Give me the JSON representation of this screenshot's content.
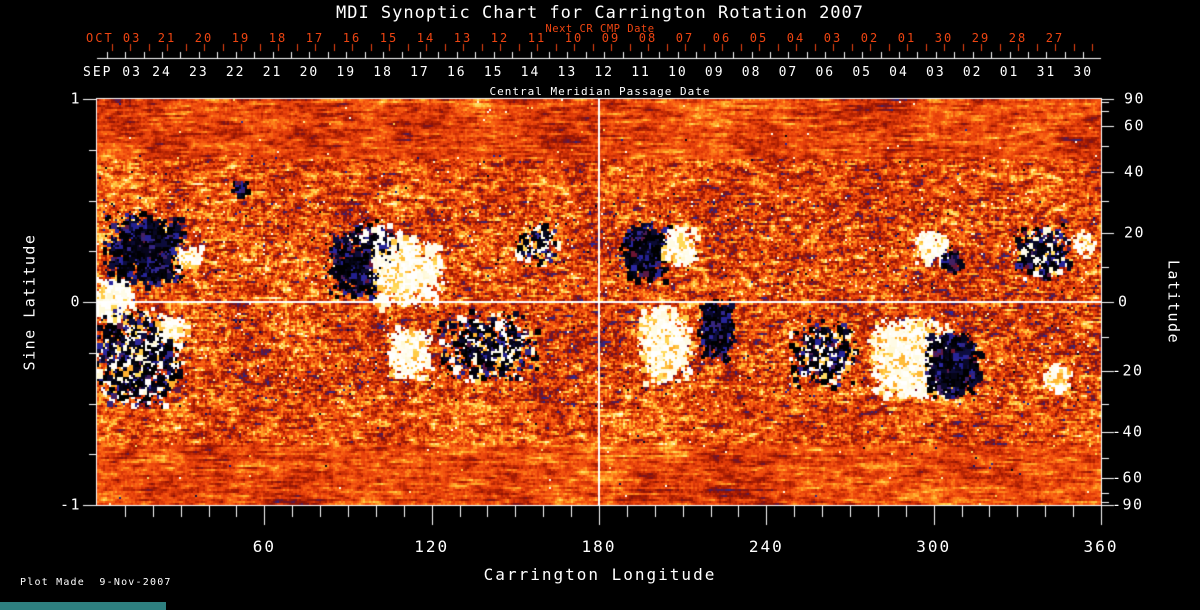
{
  "title": "MDI Synoptic Chart for Carrington Rotation 2007",
  "top_axis": {
    "red": {
      "axis_label": "Next CR CMP Date",
      "month_label": "OCT 03",
      "days": [
        "21",
        "20",
        "19",
        "18",
        "17",
        "16",
        "15",
        "14",
        "13",
        "12",
        "11",
        "10",
        "09",
        "08",
        "07",
        "06",
        "05",
        "04",
        "03",
        "02",
        "01",
        "30",
        "29",
        "28",
        "27"
      ]
    },
    "white": {
      "month_label": "SEP 03",
      "axis_label": "Central Meridian Passage Date",
      "days": [
        "24",
        "23",
        "22",
        "21",
        "20",
        "19",
        "18",
        "17",
        "16",
        "15",
        "14",
        "13",
        "12",
        "11",
        "10",
        "09",
        "08",
        "07",
        "06",
        "05",
        "04",
        "03",
        "02",
        "01",
        "31",
        "30"
      ]
    }
  },
  "left_axis": {
    "label": "Sine Latitude",
    "tick_labels": [
      "1",
      "0",
      "-1"
    ],
    "tick_values": [
      1,
      0,
      -1
    ]
  },
  "right_axis": {
    "label": "Latitude",
    "tick_labels": [
      "90",
      "60",
      "40",
      "20",
      "0",
      "-20",
      "-40",
      "-60",
      "-90"
    ],
    "tick_values": [
      90,
      60,
      40,
      20,
      0,
      -20,
      -40,
      -60,
      -90
    ]
  },
  "bottom_axis": {
    "label": "Carrington Longitude",
    "tick_labels": [
      "60",
      "120",
      "180",
      "240",
      "300",
      "360"
    ],
    "tick_values": [
      60,
      120,
      180,
      240,
      300,
      360
    ]
  },
  "footer": {
    "plot_made": "Plot Made  9-Nov-2007"
  },
  "colors": {
    "background": "#000000",
    "axis": "#ffffff",
    "red_accent": "#ee4512",
    "teal_bar": "#2e8080"
  },
  "chart_data": {
    "type": "heatmap",
    "subject": "Solar photospheric magnetic field synoptic map (MDI magnetogram), positive polarity white/yellow, negative polarity blue/black, quiet sun orange-red noise",
    "x_range": [
      0,
      360
    ],
    "sine_latitude_range": [
      -1,
      1
    ],
    "latitude_minor_tick_step_deg": 10,
    "longitude_minor_tick_step_deg": 10,
    "sine_latitude_minor_tick_step": 0.25,
    "crosshair": {
      "vertical_longitude": 180,
      "horizontal_sine_latitude": 0
    },
    "value_range": [
      -1.15,
      1.15
    ],
    "palette": [
      [
        -1.15,
        "#000000"
      ],
      [
        -0.95,
        "#06051a"
      ],
      [
        -0.8,
        "#10104a"
      ],
      [
        -0.66,
        "#1c1a7e"
      ],
      [
        -0.54,
        "#2c28a2"
      ],
      [
        -0.46,
        "#3a2470"
      ],
      [
        -0.4,
        "#6e1430"
      ],
      [
        -0.34,
        "#8c1408"
      ],
      [
        -0.22,
        "#a81c02"
      ],
      [
        -0.1,
        "#c62e06"
      ],
      [
        0.0,
        "#e23c0a"
      ],
      [
        0.1,
        "#f04c0e"
      ],
      [
        0.22,
        "#fa6414"
      ],
      [
        0.34,
        "#ff8c1e"
      ],
      [
        0.46,
        "#ffb430"
      ],
      [
        0.58,
        "#ffd854"
      ],
      [
        0.7,
        "#fff0a0"
      ],
      [
        0.86,
        "#fffbe0"
      ],
      [
        1.15,
        "#ffffff"
      ]
    ],
    "active_regions": [
      {
        "lon": 5,
        "slat": 0.02,
        "w_lon": 13,
        "h_slat": 0.17,
        "polarity": "pos",
        "density": 2.6
      },
      {
        "lon": 17,
        "slat": 0.26,
        "w_lon": 24,
        "h_slat": 0.3,
        "polarity": "neg",
        "density": 2.0
      },
      {
        "lon": 32,
        "slat": 0.22,
        "w_lon": 9,
        "h_slat": 0.1,
        "polarity": "pos",
        "density": 1.4
      },
      {
        "lon": 14,
        "slat": -0.27,
        "w_lon": 28,
        "h_slat": 0.4,
        "polarity": "mixedneg",
        "density": 1.5
      },
      {
        "lon": 27,
        "slat": -0.12,
        "w_lon": 10,
        "h_slat": 0.1,
        "polarity": "pos",
        "density": 1.2
      },
      {
        "lon": 51,
        "slat": 0.56,
        "w_lon": 6,
        "h_slat": 0.07,
        "polarity": "neg",
        "density": 1.4
      },
      {
        "lon": 94,
        "slat": 0.19,
        "w_lon": 20,
        "h_slat": 0.28,
        "polarity": "neg",
        "density": 1.5
      },
      {
        "lon": 111,
        "slat": 0.15,
        "w_lon": 22,
        "h_slat": 0.3,
        "polarity": "pos",
        "density": 2.0
      },
      {
        "lon": 100,
        "slat": 0.32,
        "w_lon": 14,
        "h_slat": 0.14,
        "polarity": "mixed",
        "density": 1.0
      },
      {
        "lon": 112,
        "slat": -0.25,
        "w_lon": 14,
        "h_slat": 0.22,
        "polarity": "pos",
        "density": 2.2
      },
      {
        "lon": 140,
        "slat": -0.22,
        "w_lon": 30,
        "h_slat": 0.3,
        "polarity": "mixedneg",
        "density": 1.0
      },
      {
        "lon": 158,
        "slat": 0.29,
        "w_lon": 14,
        "h_slat": 0.18,
        "polarity": "mixed",
        "density": 1.0
      },
      {
        "lon": 196,
        "slat": 0.25,
        "w_lon": 15,
        "h_slat": 0.24,
        "polarity": "neg",
        "density": 1.7
      },
      {
        "lon": 209,
        "slat": 0.27,
        "w_lon": 11,
        "h_slat": 0.18,
        "polarity": "pos",
        "density": 1.5
      },
      {
        "lon": 203,
        "slat": -0.2,
        "w_lon": 16,
        "h_slat": 0.32,
        "polarity": "pos",
        "density": 2.2
      },
      {
        "lon": 222,
        "slat": -0.14,
        "w_lon": 11,
        "h_slat": 0.26,
        "polarity": "neg",
        "density": 1.9
      },
      {
        "lon": 260,
        "slat": -0.25,
        "w_lon": 20,
        "h_slat": 0.28,
        "polarity": "mixedneg",
        "density": 1.2
      },
      {
        "lon": 291,
        "slat": -0.27,
        "w_lon": 24,
        "h_slat": 0.33,
        "polarity": "pos",
        "density": 2.8
      },
      {
        "lon": 307,
        "slat": -0.3,
        "w_lon": 17,
        "h_slat": 0.27,
        "polarity": "neg",
        "density": 2.2
      },
      {
        "lon": 299,
        "slat": 0.27,
        "w_lon": 11,
        "h_slat": 0.15,
        "polarity": "pos",
        "density": 1.5
      },
      {
        "lon": 306,
        "slat": 0.21,
        "w_lon": 7,
        "h_slat": 0.11,
        "polarity": "neg",
        "density": 1.5
      },
      {
        "lon": 338,
        "slat": 0.25,
        "w_lon": 18,
        "h_slat": 0.22,
        "polarity": "mixedneg",
        "density": 1.6
      },
      {
        "lon": 344,
        "slat": -0.37,
        "w_lon": 8,
        "h_slat": 0.12,
        "polarity": "pos",
        "density": 1.9
      },
      {
        "lon": 354,
        "slat": 0.28,
        "w_lon": 7,
        "h_slat": 0.12,
        "polarity": "pos",
        "density": 1.1
      }
    ]
  }
}
